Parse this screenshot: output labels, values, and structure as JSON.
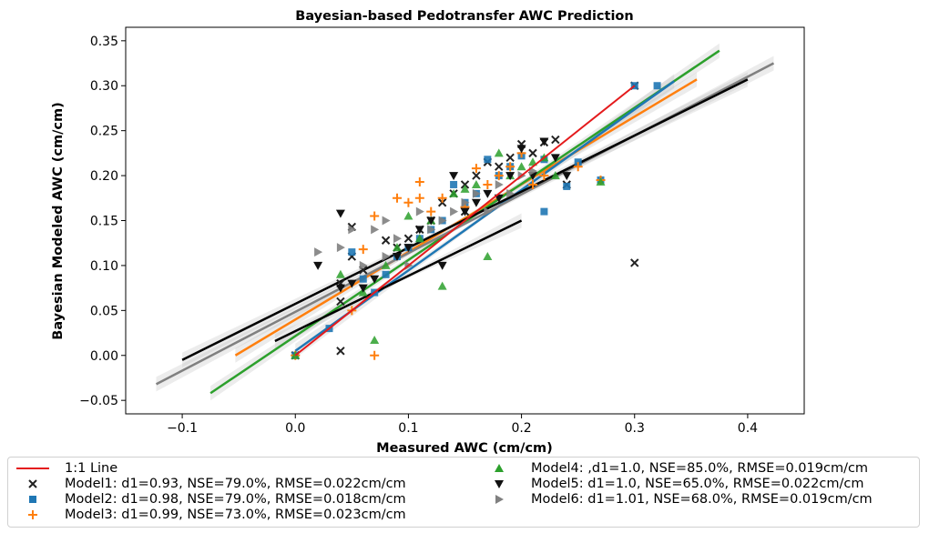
{
  "chart_data": {
    "type": "scatter",
    "title": "Bayesian-based Pedotransfer AWC Prediction",
    "xlabel": "Measured AWC (cm/cm)",
    "ylabel": "Bayesian Modeled AWC (cm/cm)",
    "xlim": [
      -0.15,
      0.45
    ],
    "ylim": [
      -0.065,
      0.365
    ],
    "xticks": [
      -0.1,
      0.0,
      0.1,
      0.2,
      0.3,
      0.4
    ],
    "yticks": [
      -0.05,
      0.0,
      0.05,
      0.1,
      0.15,
      0.2,
      0.25,
      0.3,
      0.35
    ],
    "xtick_labels": [
      "−0.1",
      "0.0",
      "0.1",
      "0.2",
      "0.3",
      "0.4"
    ],
    "ytick_labels": [
      "−0.05",
      "0.00",
      "0.05",
      "0.10",
      "0.15",
      "0.20",
      "0.25",
      "0.30",
      "0.35"
    ],
    "grid": false,
    "legend_position": "bottom",
    "one_to_one": {
      "name": "1:1 Line",
      "color": "#e41a1c",
      "x": [
        0.0,
        0.3
      ],
      "y": [
        0.0,
        0.3
      ]
    },
    "series": [
      {
        "name": "Model1: d1=0.93, NSE=79.0%, RMSE=0.022cm/cm",
        "marker": "x",
        "color": "#222222",
        "points": [
          [
            0.0,
            0.0
          ],
          [
            0.04,
            0.08
          ],
          [
            0.04,
            0.06
          ],
          [
            0.05,
            0.143
          ],
          [
            0.05,
            0.11
          ],
          [
            0.06,
            0.095
          ],
          [
            0.08,
            0.128
          ],
          [
            0.09,
            0.12
          ],
          [
            0.1,
            0.13
          ],
          [
            0.11,
            0.14
          ],
          [
            0.12,
            0.15
          ],
          [
            0.13,
            0.17
          ],
          [
            0.14,
            0.18
          ],
          [
            0.15,
            0.19
          ],
          [
            0.15,
            0.16
          ],
          [
            0.16,
            0.2
          ],
          [
            0.17,
            0.215
          ],
          [
            0.18,
            0.21
          ],
          [
            0.19,
            0.22
          ],
          [
            0.2,
            0.235
          ],
          [
            0.21,
            0.225
          ],
          [
            0.22,
            0.237
          ],
          [
            0.23,
            0.24
          ],
          [
            0.24,
            0.19
          ],
          [
            0.3,
            0.103
          ],
          [
            0.3,
            0.3
          ],
          [
            0.04,
            0.005
          ]
        ]
      },
      {
        "name": "Model2: d1=0.98, NSE=79.0%, RMSE=0.018cm/cm",
        "marker": "s",
        "color": "#1f77b4",
        "points": [
          [
            0.0,
            0.0
          ],
          [
            0.03,
            0.03
          ],
          [
            0.05,
            0.115
          ],
          [
            0.06,
            0.085
          ],
          [
            0.07,
            0.07
          ],
          [
            0.08,
            0.09
          ],
          [
            0.09,
            0.11
          ],
          [
            0.1,
            0.12
          ],
          [
            0.11,
            0.13
          ],
          [
            0.12,
            0.14
          ],
          [
            0.13,
            0.15
          ],
          [
            0.14,
            0.19
          ],
          [
            0.15,
            0.17
          ],
          [
            0.16,
            0.18
          ],
          [
            0.17,
            0.218
          ],
          [
            0.18,
            0.2
          ],
          [
            0.19,
            0.21
          ],
          [
            0.2,
            0.222
          ],
          [
            0.22,
            0.218
          ],
          [
            0.22,
            0.16
          ],
          [
            0.24,
            0.188
          ],
          [
            0.25,
            0.215
          ],
          [
            0.27,
            0.195
          ],
          [
            0.3,
            0.3
          ],
          [
            0.32,
            0.3
          ]
        ]
      },
      {
        "name": "Model3: d1=0.99, NSE=73.0%, RMSE=0.023cm/cm",
        "marker": "+",
        "color": "#ff7f0e",
        "points": [
          [
            0.0,
            0.0
          ],
          [
            0.07,
            0.0
          ],
          [
            0.06,
            0.118
          ],
          [
            0.07,
            0.155
          ],
          [
            0.09,
            0.175
          ],
          [
            0.1,
            0.17
          ],
          [
            0.11,
            0.175
          ],
          [
            0.11,
            0.193
          ],
          [
            0.12,
            0.16
          ],
          [
            0.13,
            0.175
          ],
          [
            0.15,
            0.165
          ],
          [
            0.16,
            0.208
          ],
          [
            0.17,
            0.19
          ],
          [
            0.18,
            0.2
          ],
          [
            0.19,
            0.21
          ],
          [
            0.2,
            0.225
          ],
          [
            0.21,
            0.19
          ],
          [
            0.22,
            0.2
          ],
          [
            0.25,
            0.21
          ],
          [
            0.27,
            0.195
          ],
          [
            0.05,
            0.05
          ]
        ]
      },
      {
        "name": "Model4: ,d1=1.0, NSE=85.0%, RMSE=0.019cm/cm",
        "marker": "^",
        "color": "#2ca02c",
        "points": [
          [
            0.0,
            0.0
          ],
          [
            0.07,
            0.017
          ],
          [
            0.04,
            0.09
          ],
          [
            0.06,
            0.07
          ],
          [
            0.08,
            0.1
          ],
          [
            0.09,
            0.12
          ],
          [
            0.1,
            0.155
          ],
          [
            0.11,
            0.13
          ],
          [
            0.12,
            0.15
          ],
          [
            0.13,
            0.077
          ],
          [
            0.14,
            0.18
          ],
          [
            0.15,
            0.185
          ],
          [
            0.16,
            0.19
          ],
          [
            0.17,
            0.11
          ],
          [
            0.18,
            0.225
          ],
          [
            0.19,
            0.2
          ],
          [
            0.2,
            0.21
          ],
          [
            0.21,
            0.215
          ],
          [
            0.22,
            0.22
          ],
          [
            0.23,
            0.2
          ],
          [
            0.27,
            0.193
          ]
        ]
      },
      {
        "name": "Model5: d1=1.0, NSE=65.0%, RMSE=0.022cm/cm",
        "marker": "v",
        "color": "#111111",
        "points": [
          [
            0.02,
            0.1
          ],
          [
            0.04,
            0.158
          ],
          [
            0.04,
            0.075
          ],
          [
            0.05,
            0.08
          ],
          [
            0.06,
            0.075
          ],
          [
            0.07,
            0.085
          ],
          [
            0.09,
            0.11
          ],
          [
            0.1,
            0.12
          ],
          [
            0.11,
            0.14
          ],
          [
            0.12,
            0.15
          ],
          [
            0.13,
            0.1
          ],
          [
            0.14,
            0.2
          ],
          [
            0.15,
            0.16
          ],
          [
            0.16,
            0.17
          ],
          [
            0.17,
            0.18
          ],
          [
            0.18,
            0.175
          ],
          [
            0.19,
            0.2
          ],
          [
            0.2,
            0.23
          ],
          [
            0.21,
            0.2
          ],
          [
            0.22,
            0.238
          ],
          [
            0.23,
            0.22
          ],
          [
            0.24,
            0.2
          ]
        ]
      },
      {
        "name": "Model6: d1=1.01, NSE=68.0%, RMSE=0.019cm/cm",
        "marker": ">",
        "color": "#808080",
        "points": [
          [
            0.02,
            0.115
          ],
          [
            0.05,
            0.14
          ],
          [
            0.07,
            0.14
          ],
          [
            0.08,
            0.15
          ],
          [
            0.09,
            0.13
          ],
          [
            0.1,
            0.1
          ],
          [
            0.11,
            0.16
          ],
          [
            0.12,
            0.14
          ],
          [
            0.13,
            0.15
          ],
          [
            0.14,
            0.16
          ],
          [
            0.15,
            0.17
          ],
          [
            0.16,
            0.18
          ],
          [
            0.17,
            0.16
          ],
          [
            0.18,
            0.19
          ],
          [
            0.19,
            0.18
          ],
          [
            0.2,
            0.2
          ],
          [
            0.21,
            0.205
          ],
          [
            0.04,
            0.12
          ],
          [
            0.06,
            0.1
          ],
          [
            0.08,
            0.11
          ]
        ]
      }
    ],
    "regression_lines": [
      {
        "color": "#ff7f0e",
        "x": [
          -0.053,
          0.355
        ],
        "y": [
          0.0,
          0.307
        ]
      },
      {
        "color": "#2ca02c",
        "x": [
          -0.075,
          0.375
        ],
        "y": [
          -0.042,
          0.339
        ]
      },
      {
        "color": "#1f77b4",
        "x": [
          0.0,
          0.335
        ],
        "y": [
          0.005,
          0.305
        ]
      },
      {
        "color": "#808080",
        "x": [
          -0.123,
          0.423
        ],
        "y": [
          -0.032,
          0.325
        ]
      },
      {
        "color": "#000000",
        "x": [
          -0.1,
          0.4
        ],
        "y": [
          -0.005,
          0.307
        ]
      },
      {
        "color": "#000000",
        "x": [
          -0.018,
          0.2
        ],
        "y": [
          0.016,
          0.15
        ]
      }
    ]
  }
}
